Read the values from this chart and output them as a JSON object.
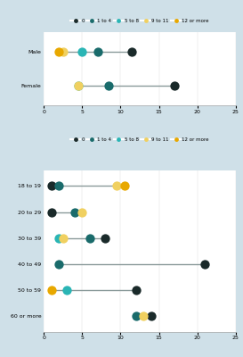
{
  "bg_color": "#cfe0e8",
  "plot_bg": "#ffffff",
  "colors": {
    "0": "#1a2a2a",
    "1to4": "#1a6b6b",
    "5to8": "#2ab5b5",
    "9to11": "#f0d060",
    "12or more": "#e8a800"
  },
  "legend_labels": [
    "0",
    "1 to 4",
    "5 to 8",
    "9 to 11",
    "12 or more"
  ],
  "legend_keys": [
    "0",
    "1to4",
    "5to8",
    "9to11",
    "12or more"
  ],
  "top_chart": {
    "categories": [
      "Female",
      "Male"
    ],
    "data": {
      "Male": {
        "0": 11.5,
        "1to4": 7,
        "5to8": 5,
        "9to11": 2.5,
        "12or more": 2
      },
      "Female": {
        "0": 17,
        "1to4": 8.5,
        "5to8": 4.5,
        "9to11": 4.5,
        "12or more": null
      }
    }
  },
  "bottom_chart": {
    "categories": [
      "60 or more",
      "50 to 59",
      "40 to 49",
      "30 to 39",
      "20 to 29",
      "18 to 19"
    ],
    "data": {
      "18 to 19": {
        "0": 1,
        "1to4": 2,
        "5to8": null,
        "9to11": 9.5,
        "12or more": 10.5
      },
      "20 to 29": {
        "0": 1,
        "1to4": 4,
        "5to8": null,
        "9to11": 5,
        "12or more": null
      },
      "30 to 39": {
        "0": 8,
        "1to4": 6,
        "5to8": 2,
        "9to11": 2.5,
        "12or more": null
      },
      "40 to 49": {
        "0": 21,
        "1to4": 2,
        "5to8": null,
        "9to11": null,
        "12or more": null
      },
      "50 to 59": {
        "0": 12,
        "1to4": null,
        "5to8": 3,
        "9to11": null,
        "12or more": 1
      },
      "60 or more": {
        "0": 14,
        "1to4": 12,
        "5to8": null,
        "9to11": 13,
        "12or more": null
      }
    }
  },
  "xlim": [
    0,
    25
  ],
  "xticks": [
    0,
    5,
    10,
    15,
    20,
    25
  ],
  "dot_size": 55,
  "line_color": "#8a9a9a",
  "line_width": 1.0
}
